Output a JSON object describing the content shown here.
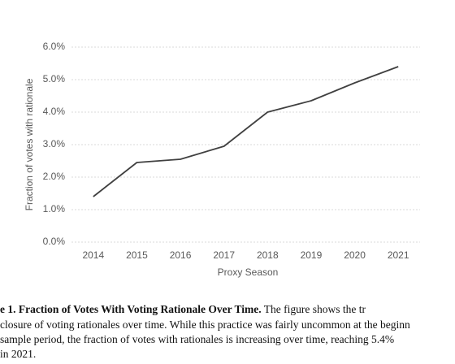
{
  "chart_data": {
    "type": "line",
    "ylabel": "Fraction of votes with rationale",
    "xlabel": "Proxy Season",
    "categories": [
      "2014",
      "2015",
      "2016",
      "2017",
      "2018",
      "2019",
      "2020",
      "2021"
    ],
    "values": [
      1.4,
      2.45,
      2.55,
      2.95,
      4.0,
      4.35,
      4.9,
      5.4
    ],
    "color": "#404040",
    "ylim": [
      0,
      6
    ],
    "yticks": [
      {
        "value": 0,
        "label": "0.0%"
      },
      {
        "value": 1,
        "label": "1.0%"
      },
      {
        "value": 2,
        "label": "2.0%"
      },
      {
        "value": 3,
        "label": "3.0%"
      },
      {
        "value": 4,
        "label": "4.0%"
      },
      {
        "value": 5,
        "label": "5.0%"
      },
      {
        "value": 6,
        "label": "6.0%"
      }
    ],
    "grid": true
  },
  "caption": {
    "label": "e 1. Fraction of Votes With Voting Rationale Over Time.",
    "lines": [
      "The figure shows the tr",
      "closure of voting rationales over time. While this practice was fairly uncommon at the beginn",
      "sample period, the fraction of votes with rationales is increasing over time, reaching 5.4%",
      "in 2021."
    ]
  }
}
